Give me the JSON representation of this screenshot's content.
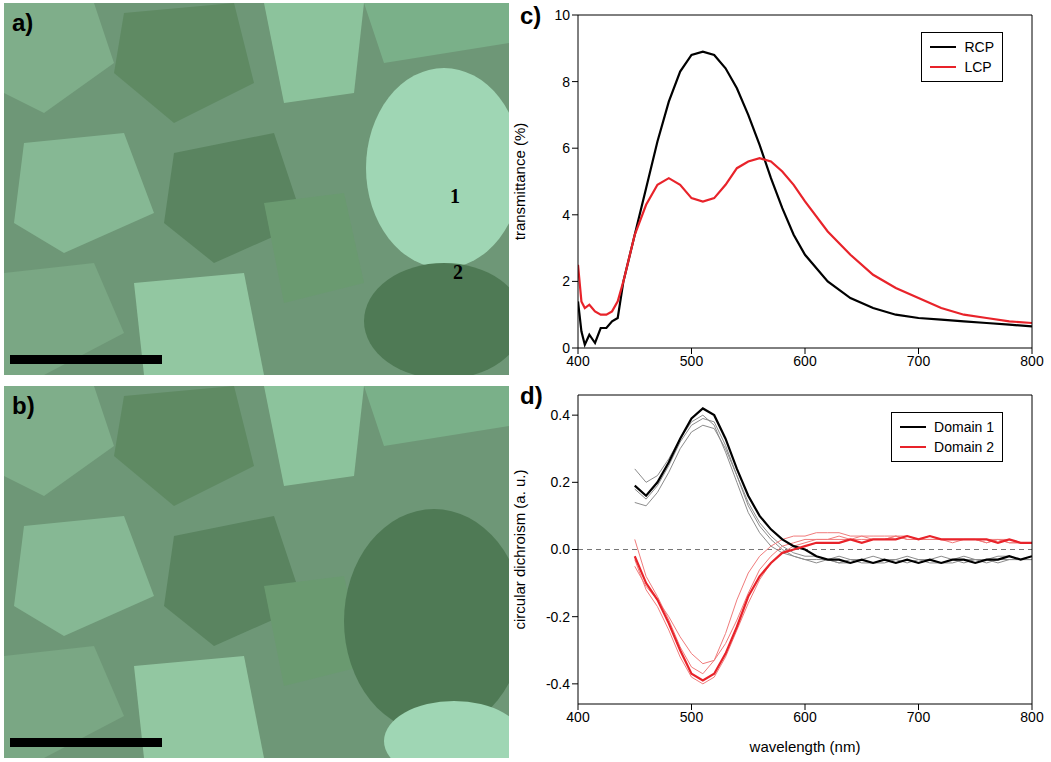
{
  "images": [
    {
      "panel": "a)",
      "domain_labels": [
        "1",
        "2"
      ]
    },
    {
      "panel": "b)"
    }
  ],
  "chart_data": [
    {
      "panel": "c)",
      "type": "line",
      "y_label": "transmittance (%)",
      "x": [
        400,
        403,
        406,
        410,
        415,
        420,
        425,
        430,
        435,
        440,
        450,
        460,
        470,
        480,
        490,
        500,
        510,
        520,
        530,
        540,
        550,
        560,
        570,
        580,
        590,
        600,
        620,
        640,
        660,
        680,
        700,
        720,
        740,
        760,
        780,
        800
      ],
      "series": [
        {
          "name": "RCP",
          "color": "#000000",
          "values": [
            1.4,
            0.5,
            0.1,
            0.4,
            0.15,
            0.6,
            0.6,
            0.8,
            0.9,
            2.0,
            3.4,
            4.8,
            6.2,
            7.4,
            8.3,
            8.8,
            8.9,
            8.8,
            8.4,
            7.8,
            7.0,
            6.1,
            5.1,
            4.2,
            3.4,
            2.8,
            2.0,
            1.5,
            1.2,
            1.0,
            0.9,
            0.85,
            0.8,
            0.75,
            0.7,
            0.65
          ]
        },
        {
          "name": "LCP",
          "color": "#e8232a",
          "values": [
            2.5,
            1.4,
            1.2,
            1.3,
            1.1,
            1.0,
            1.0,
            1.1,
            1.4,
            2.0,
            3.4,
            4.3,
            4.9,
            5.1,
            4.9,
            4.5,
            4.4,
            4.5,
            4.9,
            5.4,
            5.6,
            5.7,
            5.6,
            5.3,
            4.9,
            4.4,
            3.5,
            2.8,
            2.2,
            1.8,
            1.5,
            1.2,
            1.0,
            0.9,
            0.8,
            0.75
          ]
        }
      ],
      "xlim": [
        400,
        800
      ],
      "xticks": [
        400,
        500,
        600,
        700,
        800
      ],
      "ylim": [
        0,
        10
      ],
      "yticks": [
        0,
        2,
        4,
        6,
        8,
        10
      ],
      "legend": "upper right"
    },
    {
      "panel": "d)",
      "type": "line",
      "x_label": "wavelength (nm)",
      "y_label": "circular dichroism (a. u.)",
      "x": [
        450,
        460,
        470,
        480,
        490,
        500,
        510,
        520,
        530,
        540,
        550,
        560,
        570,
        580,
        590,
        600,
        610,
        620,
        630,
        640,
        650,
        660,
        670,
        680,
        690,
        700,
        710,
        720,
        730,
        740,
        750,
        760,
        770,
        780,
        790,
        800
      ],
      "series": [
        {
          "name": "Domain 1",
          "color": "#000000",
          "values": [
            0.19,
            0.16,
            0.2,
            0.26,
            0.33,
            0.39,
            0.42,
            0.4,
            0.33,
            0.24,
            0.16,
            0.1,
            0.06,
            0.03,
            0.01,
            0,
            -0.02,
            -0.03,
            -0.03,
            -0.04,
            -0.03,
            -0.04,
            -0.03,
            -0.04,
            -0.03,
            -0.04,
            -0.03,
            -0.04,
            -0.03,
            -0.03,
            -0.04,
            -0.03,
            -0.03,
            -0.02,
            -0.03,
            -0.02
          ]
        },
        {
          "color": "#8c8c8c",
          "values": [
            0.24,
            0.2,
            0.22,
            0.27,
            0.33,
            0.38,
            0.4,
            0.37,
            0.29,
            0.2,
            0.11,
            0.05,
            0.01,
            -0.01,
            -0.02,
            -0.03,
            -0.03,
            -0.03,
            -0.04,
            -0.03,
            -0.04,
            -0.04,
            -0.03,
            -0.04,
            -0.03,
            -0.04,
            -0.03,
            -0.04,
            -0.04,
            -0.03,
            -0.03,
            -0.04,
            -0.03,
            -0.03,
            -0.03,
            -0.03
          ]
        },
        {
          "color": "#8c8c8c",
          "values": [
            0.14,
            0.13,
            0.17,
            0.23,
            0.3,
            0.35,
            0.37,
            0.36,
            0.3,
            0.22,
            0.14,
            0.08,
            0.04,
            0.01,
            -0.01,
            -0.02,
            -0.02,
            -0.03,
            -0.02,
            -0.03,
            -0.03,
            -0.02,
            -0.03,
            -0.03,
            -0.02,
            -0.03,
            -0.03,
            -0.02,
            -0.03,
            -0.02,
            -0.03,
            -0.03,
            -0.02,
            -0.02,
            -0.03,
            -0.02
          ]
        },
        {
          "color": "#8c8c8c",
          "values": [
            0.18,
            0.15,
            0.19,
            0.25,
            0.32,
            0.37,
            0.39,
            0.38,
            0.31,
            0.22,
            0.13,
            0.07,
            0.03,
            0,
            -0.02,
            -0.03,
            -0.04,
            -0.03,
            -0.04,
            -0.04,
            -0.03,
            -0.04,
            -0.04,
            -0.03,
            -0.04,
            -0.03,
            -0.04,
            -0.04,
            -0.03,
            -0.04,
            -0.03,
            -0.03,
            -0.04,
            -0.03,
            -0.03,
            -0.03
          ]
        },
        {
          "name": "Domain 2",
          "color": "#e8232a",
          "values": [
            -0.02,
            -0.1,
            -0.15,
            -0.22,
            -0.3,
            -0.37,
            -0.39,
            -0.37,
            -0.31,
            -0.23,
            -0.14,
            -0.08,
            -0.04,
            -0.01,
            0,
            0.01,
            0.02,
            0.02,
            0.02,
            0.03,
            0.02,
            0.03,
            0.03,
            0.03,
            0.04,
            0.03,
            0.04,
            0.03,
            0.03,
            0.03,
            0.03,
            0.03,
            0.02,
            0.03,
            0.02,
            0.02
          ]
        },
        {
          "color": "#f07c7c",
          "values": [
            0.03,
            -0.08,
            -0.14,
            -0.21,
            -0.29,
            -0.35,
            -0.37,
            -0.33,
            -0.25,
            -0.15,
            -0.07,
            -0.02,
            0.01,
            0.03,
            0.04,
            0.04,
            0.05,
            0.05,
            0.05,
            0.04,
            0.04,
            0.04,
            0.04,
            0.04,
            0.04,
            0.03,
            0.03,
            0.03,
            0.03,
            0.03,
            0.03,
            0.03,
            0.03,
            0.02,
            0.02,
            0.02
          ]
        },
        {
          "color": "#f07c7c",
          "values": [
            -0.05,
            -0.11,
            -0.15,
            -0.2,
            -0.26,
            -0.31,
            -0.34,
            -0.33,
            -0.28,
            -0.21,
            -0.13,
            -0.06,
            -0.02,
            0.01,
            0.02,
            0.03,
            0.03,
            0.03,
            0.04,
            0.03,
            0.03,
            0.03,
            0.03,
            0.04,
            0.03,
            0.03,
            0.03,
            0.03,
            0.02,
            0.03,
            0.03,
            0.02,
            0.03,
            0.02,
            0.02,
            0.02
          ]
        },
        {
          "color": "#f07c7c",
          "values": [
            -0.03,
            -0.12,
            -0.17,
            -0.24,
            -0.32,
            -0.38,
            -0.4,
            -0.38,
            -0.32,
            -0.24,
            -0.16,
            -0.09,
            -0.04,
            -0.01,
            0.01,
            0.02,
            0.03,
            0.03,
            0.03,
            0.03,
            0.04,
            0.03,
            0.03,
            0.04,
            0.03,
            0.03,
            0.04,
            0.03,
            0.03,
            0.03,
            0.03,
            0.02,
            0.03,
            0.03,
            0.02,
            0.02
          ]
        }
      ],
      "xlim": [
        400,
        800
      ],
      "xticks": [
        400,
        500,
        600,
        700,
        800
      ],
      "ylim": [
        -0.46,
        0.46
      ],
      "yticks": [
        -0.4,
        -0.2,
        {
          "value": 0,
          "label": "0.0"
        },
        0.2,
        0.4
      ],
      "zero_line": 0,
      "legend": "upper right"
    }
  ]
}
